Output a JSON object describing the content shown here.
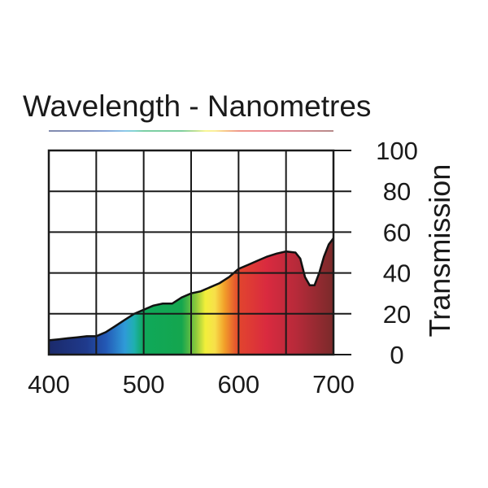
{
  "chart_data": {
    "type": "area",
    "title": "Wavelength - Nanometres",
    "xlabel": "",
    "ylabel": "Transmission",
    "xlim": [
      400,
      700
    ],
    "ylim": [
      0,
      100
    ],
    "x_ticks": [
      400,
      500,
      600,
      700
    ],
    "y_ticks": [
      0,
      20,
      40,
      60,
      80,
      100
    ],
    "x_grid_step": 50,
    "y_grid_step": 20,
    "grid": true,
    "fill": "visible-spectrum gradient by wavelength",
    "series": [
      {
        "x": [
          400,
          410,
          420,
          430,
          440,
          450,
          460,
          470,
          480,
          490,
          500,
          510,
          520,
          530,
          540,
          550,
          560,
          570,
          580,
          590,
          600,
          610,
          620,
          630,
          640,
          650,
          660,
          665,
          670,
          675,
          680,
          685,
          690,
          695,
          700
        ],
        "y": [
          7,
          7.5,
          8,
          8.5,
          9,
          9,
          11,
          14,
          17,
          20,
          22,
          24,
          25,
          25,
          28,
          30,
          31,
          33,
          35,
          38,
          42,
          44,
          46,
          48,
          49.5,
          50.5,
          50,
          47,
          38,
          34,
          34,
          40,
          48,
          54,
          57
        ]
      }
    ],
    "colors": {
      "400": "#1b2a6b",
      "440": "#1f3a8c",
      "460": "#2358b5",
      "480": "#2f9ad8",
      "490": "#1fb0b0",
      "500": "#0fa85a",
      "540": "#14a64e",
      "555": "#8cc83c",
      "565": "#f2ef3a",
      "575": "#f7e04a",
      "585": "#f2a02a",
      "600": "#e2452e",
      "630": "#d92a3f",
      "660": "#b82a3a",
      "700": "#7a2a2a"
    }
  }
}
